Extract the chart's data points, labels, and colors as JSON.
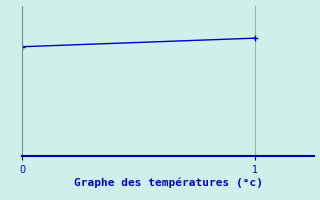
{
  "x": [
    0,
    1
  ],
  "y": [
    25.5,
    27.5
  ],
  "line_color": "#0000cc",
  "marker": "+",
  "marker_size": 5,
  "marker_color": "#0000cc",
  "background_color": "#cff0ea",
  "plot_bg_color": "#cff0ea",
  "xlabel": "Graphe des températures (°c)",
  "xlabel_color": "#0000cc",
  "xlabel_fontsize": 8,
  "axis_color": "#0000aa",
  "tick_color": "#0000aa",
  "tick_fontsize": 7,
  "xlim": [
    0,
    1.25
  ],
  "ylim": [
    0,
    35
  ],
  "xticks": [
    0,
    1
  ],
  "spine_color": "#888888",
  "vline_x": 1,
  "vline_color": "#aaaaaa"
}
